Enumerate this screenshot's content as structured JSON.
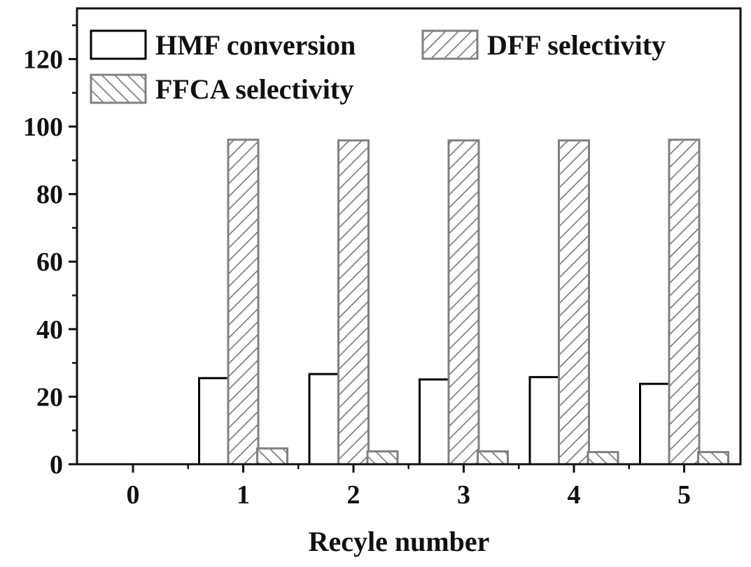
{
  "chart_data": {
    "type": "bar",
    "title": "",
    "xlabel": "Recyle number",
    "ylabel": "",
    "categories": [
      "0",
      "1",
      "2",
      "3",
      "4",
      "5"
    ],
    "ylim": [
      0,
      135
    ],
    "yticks": [
      0,
      20,
      40,
      60,
      80,
      100,
      120
    ],
    "series": [
      {
        "name": "HMF conversion",
        "values": [
          0,
          25.5,
          26.7,
          25.1,
          25.8,
          23.8
        ],
        "fill": "#ffffff",
        "stroke": "#000000",
        "pattern": "none"
      },
      {
        "name": "DFF selectivity",
        "values": [
          0,
          96.1,
          95.9,
          95.9,
          95.9,
          96.1
        ],
        "fill": "#ffffff",
        "stroke": "#808080",
        "pattern": "forward-hatch"
      },
      {
        "name": "FFCA selectivity",
        "values": [
          0,
          4.7,
          3.8,
          3.8,
          3.6,
          3.6
        ],
        "fill": "#ffffff",
        "stroke": "#808080",
        "pattern": "back-hatch"
      }
    ],
    "legend_position": "top-left",
    "grid": false
  }
}
